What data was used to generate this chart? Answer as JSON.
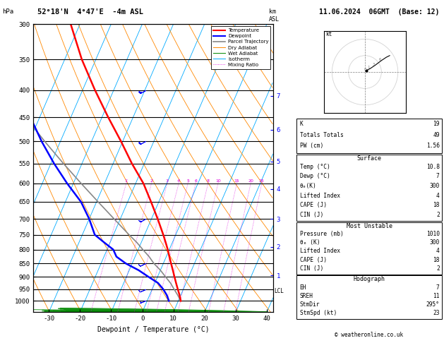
{
  "title_left": "52°18'N  4°47'E  -4m ASL",
  "title_right": "11.06.2024  06GMT  (Base: 12)",
  "xlabel": "Dewpoint / Temperature (°C)",
  "pressure_levels": [
    300,
    350,
    400,
    450,
    500,
    550,
    600,
    650,
    700,
    750,
    800,
    850,
    900,
    950,
    1000
  ],
  "xlim": [
    -35,
    42
  ],
  "pmin": 300,
  "pmax": 1050,
  "skew": 40,
  "mixing_ratios": [
    1,
    2,
    3,
    4,
    5,
    6,
    8,
    10,
    15,
    20,
    25
  ],
  "legend_items": [
    {
      "label": "Temperature",
      "color": "#ff0000",
      "linestyle": "-",
      "lw": 1.5
    },
    {
      "label": "Dewpoint",
      "color": "#0000ff",
      "linestyle": "-",
      "lw": 1.5
    },
    {
      "label": "Parcel Trajectory",
      "color": "#888888",
      "linestyle": "-",
      "lw": 1.2
    },
    {
      "label": "Dry Adiabat",
      "color": "#ff8800",
      "linestyle": "-",
      "lw": 0.7
    },
    {
      "label": "Wet Adiabat",
      "color": "#008800",
      "linestyle": "-",
      "lw": 0.7
    },
    {
      "label": "Isotherm",
      "color": "#00aaff",
      "linestyle": "-",
      "lw": 0.7
    },
    {
      "label": "Mixing Ratio",
      "color": "#dd00dd",
      "linestyle": ":",
      "lw": 0.6
    }
  ],
  "temp_profile": {
    "pressure": [
      1000,
      975,
      950,
      925,
      900,
      875,
      850,
      825,
      800,
      775,
      750,
      700,
      650,
      600,
      550,
      500,
      450,
      400,
      350,
      300
    ],
    "temp": [
      10.8,
      9.6,
      8.2,
      6.8,
      5.4,
      4.0,
      2.5,
      1.0,
      -0.5,
      -2.2,
      -4.0,
      -8.0,
      -12.5,
      -17.5,
      -24.0,
      -30.5,
      -38.0,
      -46.0,
      -54.5,
      -63.0
    ]
  },
  "dewp_profile": {
    "pressure": [
      1000,
      975,
      950,
      925,
      900,
      875,
      850,
      825,
      800,
      775,
      750,
      700,
      650,
      600,
      550,
      500,
      450,
      400,
      350,
      300
    ],
    "temp": [
      7.0,
      5.5,
      3.5,
      1.0,
      -3.0,
      -7.0,
      -12.0,
      -16.0,
      -18.0,
      -22.0,
      -26.0,
      -30.0,
      -35.0,
      -42.0,
      -49.0,
      -56.0,
      -63.0,
      -70.0,
      -77.0,
      -84.0
    ]
  },
  "parcel_profile": {
    "pressure": [
      1000,
      975,
      950,
      925,
      900,
      875,
      850,
      825,
      800,
      775,
      750,
      700,
      650,
      600,
      550,
      500,
      450,
      400,
      350,
      300
    ],
    "temp": [
      10.8,
      9.0,
      7.0,
      5.0,
      2.5,
      0.0,
      -3.0,
      -5.5,
      -8.5,
      -11.5,
      -15.0,
      -22.0,
      -29.5,
      -37.5,
      -46.0,
      -55.0,
      -64.5,
      -74.0,
      -84.0,
      -94.0
    ]
  },
  "lcl_pressure": 957,
  "km_labels": {
    "1": 895,
    "2": 790,
    "3": 700,
    "4": 615,
    "5": 545,
    "6": 475,
    "7": 410
  },
  "wind_barbs_p": [
    1000,
    950,
    850,
    700,
    500,
    400
  ],
  "wind_barbs_u": [
    5,
    7,
    10,
    14,
    18,
    20
  ],
  "wind_barbs_v": [
    2,
    3,
    5,
    8,
    10,
    11
  ],
  "stats_K": 19,
  "stats_TT": 49,
  "stats_PW": 1.56,
  "surf_temp": 10.8,
  "surf_dewp": 7,
  "surf_theta_e": 300,
  "surf_li": 4,
  "surf_cape": 18,
  "surf_cin": 2,
  "mu_press": 1010,
  "mu_theta_e": 300,
  "mu_li": 4,
  "mu_cape": 18,
  "mu_cin": 2,
  "hodo_EH": 7,
  "hodo_SREH": 11,
  "hodo_StmDir": "295°",
  "hodo_StmSpd": 23,
  "copyright": "© weatheronline.co.uk",
  "bg_color": "#ffffff",
  "isotherm_color": "#00aaff",
  "dry_adiabat_color": "#ff8800",
  "wet_adiabat_color": "#008800",
  "mr_color": "#dd00dd",
  "temp_color": "#ff0000",
  "dewp_color": "#0000ff",
  "parcel_color": "#888888"
}
